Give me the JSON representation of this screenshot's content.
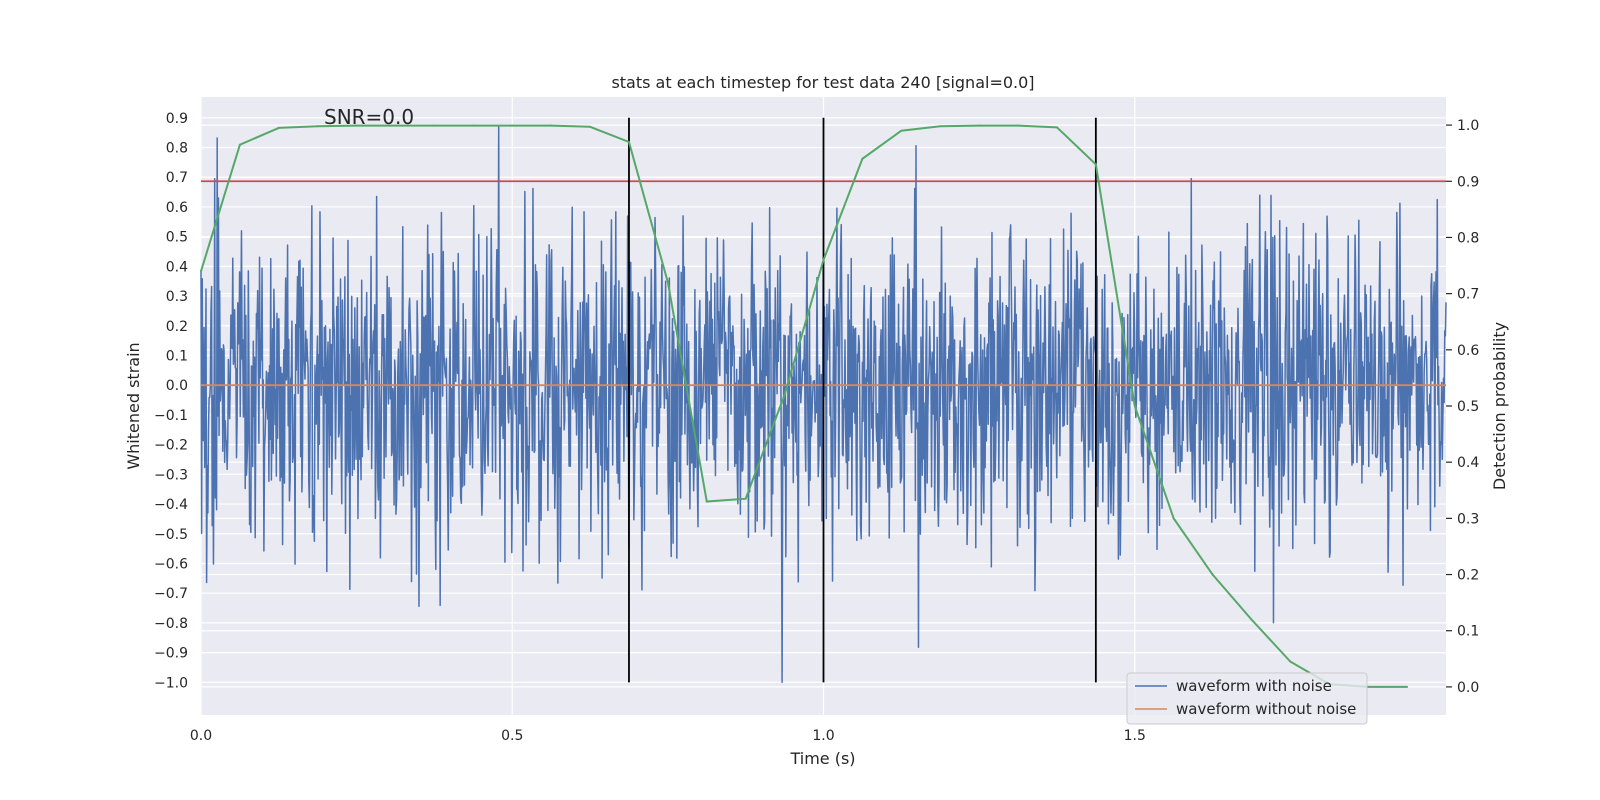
{
  "chart_data": {
    "type": "line",
    "title": "stats at each timestep for test data 240 [signal=0.0]",
    "annotation": "SNR=0.0",
    "xlabel": "Time (s)",
    "ylabel_left": "Whitened strain",
    "ylabel_right": "Detection probability",
    "xlim": [
      0.0,
      2.0
    ],
    "ylim_left": [
      -1.11,
      0.97
    ],
    "ylim_right": [
      -0.05,
      1.05
    ],
    "x_ticks": [
      0.0,
      0.5,
      1.0,
      1.5
    ],
    "x_tick_labels": [
      "0.0",
      "0.5",
      "1.0",
      "1.5"
    ],
    "y_left_ticks": [
      0.9,
      0.8,
      0.7,
      0.6,
      0.5,
      0.4,
      0.3,
      0.2,
      0.1,
      0.0,
      -0.1,
      -0.2,
      -0.3,
      -0.4,
      -0.5,
      -0.6,
      -0.7,
      -0.8,
      -0.9,
      -1.0
    ],
    "y_left_tick_labels": [
      "0.9",
      "0.8",
      "0.7",
      "0.6",
      "0.5",
      "0.4",
      "0.3",
      "0.2",
      "0.1",
      "0.0",
      "−0.1",
      "−0.2",
      "−0.3",
      "−0.4",
      "−0.5",
      "−0.6",
      "−0.7",
      "−0.8",
      "−0.9",
      "−1.0"
    ],
    "y_right_ticks": [
      1.0,
      0.9,
      0.8,
      0.7,
      0.6,
      0.5,
      0.4,
      0.3,
      0.2,
      0.1,
      0.0
    ],
    "y_right_tick_labels": [
      "1.0",
      "0.9",
      "0.8",
      "0.7",
      "0.6",
      "0.5",
      "0.4",
      "0.3",
      "0.2",
      "0.1",
      "0.0"
    ],
    "grid": true,
    "legend_position": "lower-right",
    "threshold_line": {
      "axis": "right",
      "y": 0.9,
      "color": "#c44e52"
    },
    "vertical_lines": {
      "x": [
        0.6875,
        1.0,
        1.4375
      ],
      "y_range": [
        -1.0,
        0.9
      ],
      "color": "#000000"
    },
    "series": [
      {
        "name": "waveform with noise",
        "axis": "left",
        "color": "#4c72b0",
        "kind": "noise",
        "x_range": [
          0.0,
          2.0
        ],
        "samples": 2000,
        "std": 0.27,
        "y_min": -1.0,
        "y_max": 0.87
      },
      {
        "name": "waveform without noise",
        "axis": "left",
        "color": "#dd8452",
        "x": [
          0.0,
          2.0
        ],
        "y": [
          0.0,
          0.0
        ]
      },
      {
        "name": "",
        "axis": "right",
        "color": "#55a868",
        "x": [
          0.0,
          0.0625,
          0.125,
          0.1875,
          0.25,
          0.3125,
          0.375,
          0.4375,
          0.5,
          0.5625,
          0.625,
          0.6875,
          0.75,
          0.8125,
          0.875,
          0.9375,
          1.0,
          1.0625,
          1.125,
          1.1875,
          1.25,
          1.3125,
          1.375,
          1.4375,
          1.5,
          1.5625,
          1.625,
          1.6875,
          1.75,
          1.8125,
          1.875,
          1.9375
        ],
        "y": [
          0.74,
          0.965,
          0.995,
          0.998,
          0.999,
          0.999,
          0.999,
          0.999,
          0.999,
          0.999,
          0.997,
          0.97,
          0.72,
          0.33,
          0.335,
          0.52,
          0.76,
          0.94,
          0.99,
          0.998,
          0.999,
          0.999,
          0.996,
          0.93,
          0.5,
          0.3,
          0.2,
          0.12,
          0.045,
          0.005,
          0.0,
          0.0
        ]
      }
    ]
  }
}
